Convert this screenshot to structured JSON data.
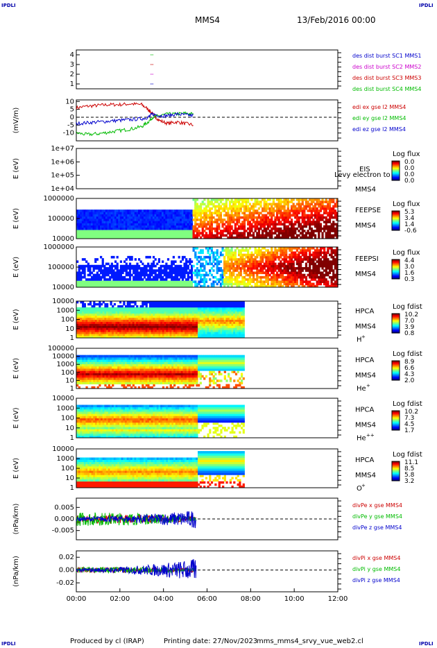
{
  "header": {
    "corner_label": "IPDLI",
    "spacecraft": "MMS4",
    "date": "13/Feb/2016 00:00"
  },
  "footer": {
    "produced": "Produced by cl (IRAP)",
    "printing": "Printing date: 27/Nov/2023",
    "script": "mms_mms4_srvy_vue_web2.cl"
  },
  "chart_data": [
    {
      "id": "burst",
      "type": "scatter",
      "ylim": [
        0.5,
        4.5
      ],
      "yticks": [
        "1",
        "2",
        "3",
        "4"
      ],
      "legend": [
        {
          "text": "des dist burst SC1 MMS1",
          "color": "#0000cc"
        },
        {
          "text": "des dist burst SC2 MMS2",
          "color": "#cc00cc"
        },
        {
          "text": "des dist burst SC3 MMS3",
          "color": "#cc0000"
        },
        {
          "text": "des dist burst SC4 MMS4",
          "color": "#00bb00"
        }
      ],
      "series": [
        {
          "y": 1,
          "x": [
            3.4,
            3.5
          ],
          "color": "#0000cc"
        },
        {
          "y": 2,
          "x": [
            3.4,
            3.5
          ],
          "color": "#cc00cc"
        },
        {
          "y": 3,
          "x": [
            3.4,
            3.5
          ],
          "color": "#cc0000"
        },
        {
          "y": 4,
          "x": [
            3.4,
            3.5
          ],
          "color": "#00bb00"
        }
      ]
    },
    {
      "id": "edi",
      "type": "line",
      "ylabel": "(mV/m)",
      "ylim": [
        -15,
        11
      ],
      "yticks": [
        "10",
        "5",
        "0",
        "-5",
        "-10"
      ],
      "ytickvals": [
        10,
        5,
        0,
        -5,
        -10
      ],
      "legend": [
        {
          "text": "edi ex gse l2 MMS4",
          "color": "#cc0000"
        },
        {
          "text": "edi ey gse l2 MMS4",
          "color": "#00bb00"
        },
        {
          "text": "edi ez gse l2 MMS4",
          "color": "#0000cc"
        }
      ],
      "series": [
        {
          "name": "edi ex gse l2 MMS4",
          "color": "#cc0000",
          "x": [
            0.0,
            0.5,
            1.0,
            1.5,
            2.0,
            2.5,
            3.0,
            3.3,
            3.5,
            3.8,
            4.2,
            4.6,
            5.0,
            5.4
          ],
          "y": [
            6,
            7,
            7.5,
            8,
            8,
            8.5,
            8,
            5,
            2,
            -2,
            -4,
            -3,
            -4,
            -5
          ]
        },
        {
          "name": "edi ey gse l2 MMS4",
          "color": "#00bb00",
          "x": [
            0.0,
            0.5,
            1.0,
            1.5,
            2.0,
            2.5,
            3.0,
            3.3,
            3.5,
            3.8,
            4.2,
            4.6,
            5.0,
            5.4
          ],
          "y": [
            -10,
            -11,
            -10.5,
            -9.5,
            -8.5,
            -7.5,
            -6,
            -3,
            0,
            1,
            2,
            2,
            2.5,
            2
          ]
        },
        {
          "name": "edi ez gse l2 MMS4",
          "color": "#0000cc",
          "x": [
            0.0,
            0.5,
            1.0,
            1.5,
            2.0,
            2.5,
            3.0,
            3.3,
            3.5,
            3.8,
            4.2,
            4.6,
            5.0,
            5.4
          ],
          "y": [
            -4,
            -3.5,
            -3,
            -2.5,
            -2,
            -1.5,
            -1,
            0,
            2,
            1,
            1,
            2,
            1.5,
            1
          ]
        }
      ]
    },
    {
      "id": "eis",
      "type": "heatmap",
      "ylabel": "E (eV)",
      "yticks": [
        "1e+07",
        "1e+06",
        "1e+05",
        "1e+04"
      ],
      "instrument": "EIS",
      "spacecraft": "MMS4",
      "overlay": "Levy electron to",
      "cbar_title": "Log flux",
      "cbar_ticks": [
        "0.0",
        "0.0",
        "0.0",
        "0.0"
      ]
    },
    {
      "id": "feepse",
      "type": "heatmap",
      "ylabel": "E (eV)",
      "yticks": [
        "1000000",
        "100000",
        "10000"
      ],
      "instrument": "FEEPSE",
      "spacecraft": "MMS4",
      "cbar_title": "Log flux",
      "cbar_ticks": [
        "5.3",
        "3.4",
        "1.4",
        "-0.6"
      ]
    },
    {
      "id": "feepsi",
      "type": "heatmap",
      "ylabel": "E (eV)",
      "yticks": [
        "1000000",
        "100000",
        "10000"
      ],
      "instrument": "FEEPSI",
      "spacecraft": "MMS4",
      "cbar_title": "Log flux",
      "cbar_ticks": [
        "4.4",
        "3.0",
        "1.6",
        "0.3"
      ]
    },
    {
      "id": "hpca_h",
      "type": "heatmap",
      "ylabel": "E (eV)",
      "yticks": [
        "10000",
        "1000",
        "100",
        "10",
        "1"
      ],
      "instrument": "HPCA",
      "spacecraft": "MMS4",
      "species": "H",
      "charge": "+",
      "cbar_title": "Log fdist",
      "cbar_ticks": [
        "10.2",
        "7.0",
        "3.9",
        "0.8"
      ]
    },
    {
      "id": "hpca_he1",
      "type": "heatmap",
      "ylabel": "E (eV)",
      "yticks": [
        "100000",
        "10000",
        "1000",
        "100",
        "10",
        "1"
      ],
      "instrument": "HPCA",
      "spacecraft": "MMS4",
      "species": "He",
      "charge": "+",
      "cbar_title": "Log fdist",
      "cbar_ticks": [
        "8.9",
        "6.6",
        "4.3",
        "2.0"
      ]
    },
    {
      "id": "hpca_he2",
      "type": "heatmap",
      "ylabel": "E (eV)",
      "yticks": [
        "10000",
        "1000",
        "100",
        "10",
        "1"
      ],
      "instrument": "HPCA",
      "spacecraft": "MMS4",
      "species": "He",
      "charge": "++",
      "cbar_title": "Log fdist",
      "cbar_ticks": [
        "10.2",
        "7.3",
        "4.5",
        "1.7"
      ]
    },
    {
      "id": "hpca_o",
      "type": "heatmap",
      "ylabel": "E (eV)",
      "yticks": [
        "10000",
        "1000",
        "100",
        "10",
        "1"
      ],
      "instrument": "HPCA",
      "spacecraft": "MMS4",
      "species": "O",
      "charge": "+",
      "cbar_title": "Log fdist",
      "cbar_ticks": [
        "11.1",
        "8.5",
        "5.8",
        "3.2"
      ]
    },
    {
      "id": "divpe",
      "type": "line",
      "ylabel": "(nPa/km)",
      "ylim": [
        -0.009,
        0.009
      ],
      "yticks": [
        "0.005",
        "0.000",
        "-0.005"
      ],
      "ytickvals": [
        0.005,
        0.0,
        -0.005
      ],
      "legend": [
        {
          "text": "divPe x gse MMS4",
          "color": "#cc0000"
        },
        {
          "text": "divPe y gse MMS4",
          "color": "#00bb00"
        },
        {
          "text": "divPe z gse MMS4",
          "color": "#0000cc"
        }
      ],
      "series": [
        {
          "name": "divPe x gse MMS4",
          "color": "#cc0000",
          "x": [
            0.0,
            5.5
          ],
          "amp": [
            0.002,
            0.001
          ]
        },
        {
          "name": "divPe y gse MMS4",
          "color": "#00bb00",
          "x": [
            0.0,
            5.5
          ],
          "amp": [
            0.003,
            0.001
          ]
        },
        {
          "name": "divPe z gse MMS4",
          "color": "#0000cc",
          "x": [
            0.0,
            5.5
          ],
          "amp": [
            0.001,
            0.004
          ]
        }
      ]
    },
    {
      "id": "divpi",
      "type": "line",
      "ylabel": "(nPa/km)",
      "ylim": [
        -0.034,
        0.03
      ],
      "yticks": [
        "0.02",
        "0.00",
        "-0.02"
      ],
      "ytickvals": [
        0.02,
        0.0,
        -0.02
      ],
      "legend": [
        {
          "text": "divPi x gse MMS4",
          "color": "#cc0000"
        },
        {
          "text": "divPi y gse MMS4",
          "color": "#00bb00"
        },
        {
          "text": "divPi z gse MMS4",
          "color": "#0000cc"
        }
      ],
      "series": [
        {
          "name": "divPi x gse MMS4",
          "color": "#cc0000",
          "x": [
            0.0,
            5.5
          ],
          "amp": [
            0.004,
            0.003
          ]
        },
        {
          "name": "divPi y gse MMS4",
          "color": "#00bb00",
          "x": [
            0.0,
            5.5
          ],
          "amp": [
            0.005,
            0.003
          ]
        },
        {
          "name": "divPi z gse MMS4",
          "color": "#0000cc",
          "x": [
            0.0,
            5.5
          ],
          "amp": [
            0.003,
            0.018
          ]
        }
      ]
    }
  ],
  "xaxis": {
    "range": [
      "00:00",
      "12:00"
    ],
    "ticks": [
      "00:00",
      "02:00",
      "04:00",
      "06:00",
      "08:00",
      "10:00",
      "12:00"
    ]
  }
}
